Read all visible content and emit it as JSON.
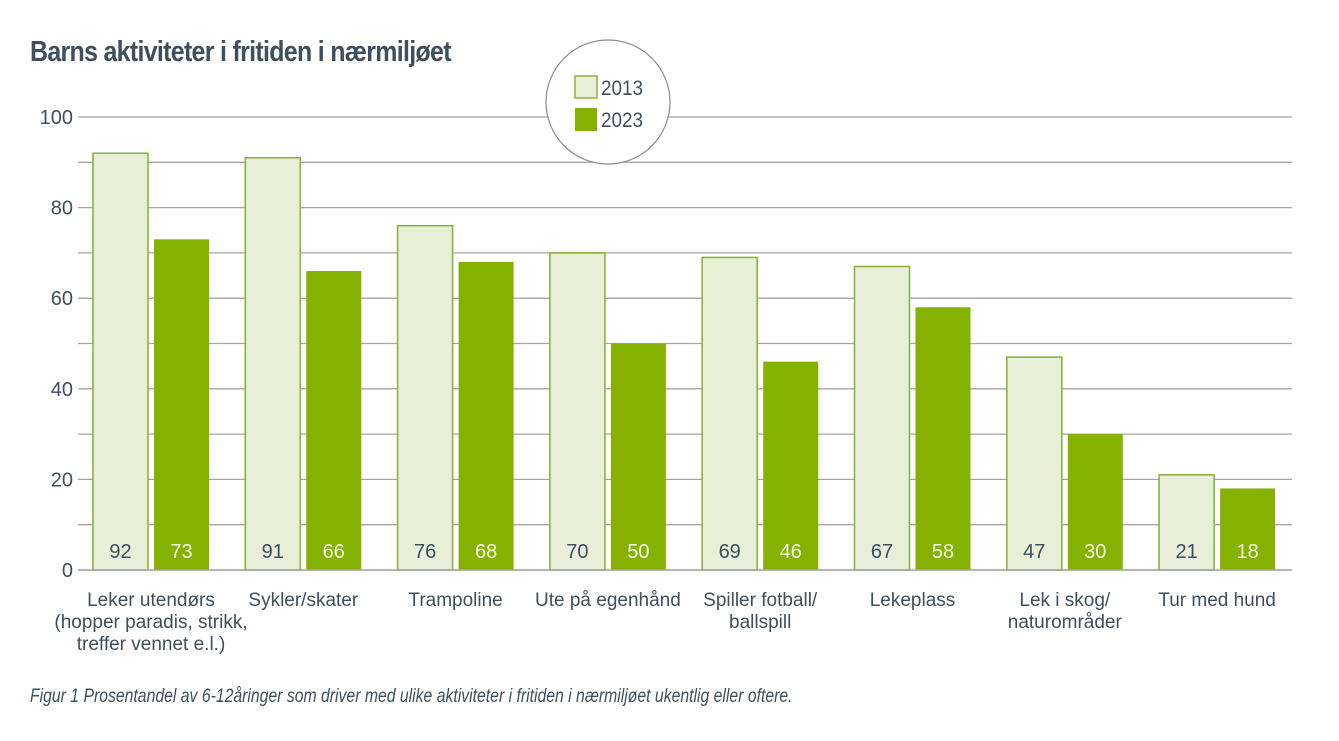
{
  "chart_data": {
    "type": "bar",
    "title": "Barns aktiviteter i fritiden i nærmiljøet",
    "caption": "Figur 1 Prosentandel av 6-12åringer som driver med ulike aktiviteter i fritiden i nærmiljøet ukentlig eller oftere.",
    "xlabel": "",
    "ylabel": "",
    "ylim": [
      0,
      100
    ],
    "yticks": [
      0,
      20,
      40,
      60,
      80,
      100
    ],
    "grid": true,
    "grid_step": 10,
    "legend_position": "top-center",
    "categories": [
      [
        "Leker utendørs",
        "(hopper paradis, strikk,",
        "treffer vennet e.l.)"
      ],
      [
        "Sykler/skater"
      ],
      [
        "Trampoline"
      ],
      [
        "Ute på egenhånd"
      ],
      [
        "Spiller fotball/",
        "ballspill"
      ],
      [
        "Lekeplass"
      ],
      [
        "Lek i skog/",
        "naturområder"
      ],
      [
        "Tur med hund"
      ]
    ],
    "series": [
      {
        "name": "2013",
        "values": [
          92,
          91,
          76,
          70,
          69,
          67,
          47,
          21
        ],
        "fill": "#e8efd8",
        "stroke": "#8db33a",
        "label_color": "#3d4f60"
      },
      {
        "name": "2023",
        "values": [
          73,
          66,
          68,
          50,
          46,
          58,
          30,
          18
        ],
        "fill": "#85b200",
        "stroke": "#85b200",
        "label_color": "#f4f7e6"
      }
    ]
  },
  "colors": {
    "text": "#3d4f60",
    "grid": "#a5a5a5",
    "legend_circle": "#8c8c8c"
  }
}
